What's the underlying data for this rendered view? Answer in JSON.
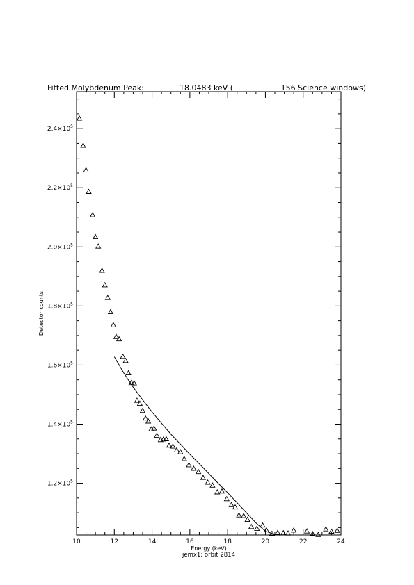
{
  "chart_data": {
    "type": "scatter",
    "title": {
      "prefix": "Fitted Molybdenum Peak:",
      "energy": "18.0483 keV (",
      "windows": "156 Science windows)"
    },
    "xlabel": "Energy (keV)",
    "ylabel": "Detector counts",
    "footer": "jemx1: orbit 2814",
    "xlim": [
      10,
      24
    ],
    "ylim": [
      102500,
      252500
    ],
    "x_ticks": [
      {
        "value": 10,
        "label": "10"
      },
      {
        "value": 12,
        "label": "12"
      },
      {
        "value": 14,
        "label": "14"
      },
      {
        "value": 16,
        "label": "16"
      },
      {
        "value": 18,
        "label": "18"
      },
      {
        "value": 20,
        "label": "20"
      },
      {
        "value": 22,
        "label": "22"
      },
      {
        "value": 24,
        "label": "24"
      }
    ],
    "y_ticks": [
      {
        "value": 120000,
        "mantissa": "1.2×10",
        "exp": "5"
      },
      {
        "value": 140000,
        "mantissa": "1.4×10",
        "exp": "5"
      },
      {
        "value": 160000,
        "mantissa": "1.6×10",
        "exp": "5"
      },
      {
        "value": 180000,
        "mantissa": "1.8×10",
        "exp": "5"
      },
      {
        "value": 200000,
        "mantissa": "2.0×10",
        "exp": "5"
      },
      {
        "value": 220000,
        "mantissa": "2.2×10",
        "exp": "5"
      },
      {
        "value": 240000,
        "mantissa": "2.4×10",
        "exp": "5"
      }
    ],
    "series": [
      {
        "marker": "triangle",
        "x": [
          10.15,
          10.35,
          10.5,
          10.65,
          10.85,
          11.0,
          11.15,
          11.35,
          11.5,
          11.65,
          11.8,
          11.95,
          12.1,
          12.25,
          12.45,
          12.6,
          12.75,
          12.9,
          13.05,
          13.2,
          13.35,
          13.5,
          13.65,
          13.8,
          13.95,
          14.1,
          14.25,
          14.45,
          14.6,
          14.75,
          14.9,
          15.1,
          15.3,
          15.5,
          15.7,
          15.95,
          16.2,
          16.45,
          16.7,
          16.95,
          17.2,
          17.45,
          17.7,
          17.95,
          18.2,
          18.4,
          18.6,
          18.85,
          19.05,
          19.25,
          19.55,
          19.85,
          20.05,
          20.35,
          20.65,
          20.95,
          21.2,
          21.5,
          21.8,
          22.2,
          22.5,
          22.8,
          23.2,
          23.5,
          23.8
        ],
        "y": [
          243500,
          234300,
          226000,
          218700,
          210800,
          203400,
          200200,
          192000,
          187100,
          182800,
          178000,
          173600,
          169600,
          168800,
          162900,
          161500,
          157300,
          154000,
          153900,
          148000,
          147000,
          144600,
          142000,
          141000,
          138300,
          138600,
          136200,
          134700,
          134900,
          135000,
          132800,
          132500,
          131200,
          130600,
          128300,
          126200,
          125000,
          123900,
          121900,
          120300,
          119300,
          117000,
          117300,
          114700,
          112700,
          111900,
          109200,
          109000,
          107700,
          105300,
          104700,
          105800,
          104200,
          103000,
          103300,
          103200,
          103100,
          104100,
          102300,
          103800,
          102900,
          102600,
          104500,
          103700,
          104000
        ]
      },
      {
        "marker": "line",
        "x": [
          12.0,
          12.5,
          13.0,
          13.5,
          14.0,
          14.5,
          15.0,
          15.5,
          16.0,
          16.5,
          17.0,
          17.5,
          18.0,
          18.5,
          19.0,
          19.5,
          20.0,
          20.5,
          20.8
        ],
        "y": [
          162800,
          157300,
          152500,
          148200,
          144100,
          140300,
          136600,
          133200,
          129800,
          126600,
          123300,
          120000,
          116800,
          113400,
          110000,
          106600,
          103800,
          102700,
          102400
        ]
      }
    ]
  }
}
